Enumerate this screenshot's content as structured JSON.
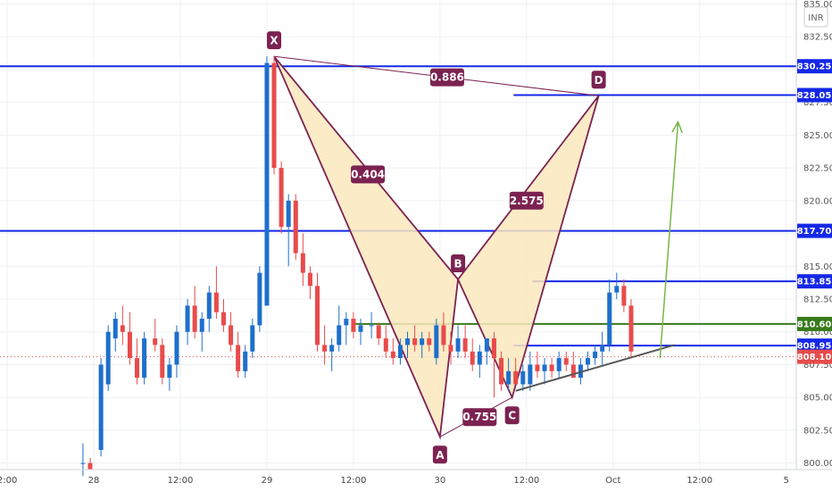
{
  "chart_data": {
    "type": "candlestick",
    "currency": "INR",
    "y_ticks": [
      "800.00",
      "802.50",
      "805.00",
      "807.50",
      "810.00",
      "812.50",
      "815.00",
      "817.50",
      "820.00",
      "822.50",
      "825.00",
      "827.50",
      "830.00",
      "832.50",
      "835.00"
    ],
    "ylim": [
      799.5,
      835.3
    ],
    "x_ticks": [
      {
        "t": 0,
        "label": "2:00"
      },
      {
        "t": 12,
        "label": "28"
      },
      {
        "t": 24,
        "label": "12:00"
      },
      {
        "t": 36,
        "label": "29"
      },
      {
        "t": 48,
        "label": "12:00"
      },
      {
        "t": 60,
        "label": "30"
      },
      {
        "t": 72,
        "label": "12:00"
      },
      {
        "t": 84,
        "label": "Oct"
      },
      {
        "t": 96,
        "label": "12:00"
      },
      {
        "t": 108,
        "label": "5"
      }
    ],
    "xlim": [
      -1,
      109.4
    ],
    "candles": [
      [
        10.5,
        800.0,
        801.5,
        799.0,
        800.0
      ],
      [
        11.5,
        800.0,
        800.4,
        799.5,
        799.5
      ],
      [
        13.0,
        801.0,
        808.0,
        800.5,
        807.5
      ],
      [
        14.0,
        806.0,
        810.5,
        805.5,
        810.0
      ],
      [
        15.0,
        809.5,
        811.5,
        808.5,
        811.0
      ],
      [
        16.0,
        810.5,
        812.0,
        809.0,
        810.0
      ],
      [
        17.0,
        810.0,
        811.5,
        807.5,
        808.0
      ],
      [
        18.0,
        808.0,
        809.5,
        806.0,
        806.5
      ],
      [
        19.0,
        806.5,
        810.0,
        806.0,
        809.5
      ],
      [
        20.5,
        809.5,
        811.0,
        808.5,
        809.0
      ],
      [
        21.5,
        809.0,
        809.5,
        806.0,
        806.5
      ],
      [
        22.5,
        806.5,
        808.0,
        805.5,
        807.5
      ],
      [
        23.5,
        807.5,
        810.5,
        806.5,
        810.0
      ],
      [
        25.0,
        810.0,
        812.5,
        809.0,
        812.0
      ],
      [
        26.0,
        812.0,
        813.5,
        809.5,
        810.0
      ],
      [
        27.0,
        810.0,
        811.5,
        808.5,
        811.0
      ],
      [
        28.0,
        811.0,
        813.5,
        810.0,
        813.0
      ],
      [
        29.0,
        813.0,
        815.0,
        811.0,
        811.5
      ],
      [
        30.0,
        811.5,
        812.5,
        810.0,
        810.5
      ],
      [
        31.0,
        810.5,
        811.5,
        808.5,
        809.0
      ],
      [
        32.0,
        809.0,
        810.0,
        806.5,
        807.0
      ],
      [
        33.0,
        807.0,
        809.0,
        806.5,
        808.5
      ],
      [
        34.0,
        808.5,
        811.0,
        808.0,
        810.5
      ],
      [
        35.0,
        810.5,
        815.0,
        810.0,
        814.5
      ],
      [
        36.0,
        812.0,
        831.0,
        812.0,
        830.5
      ],
      [
        37.0,
        830.5,
        831.0,
        822.0,
        822.5
      ],
      [
        38.0,
        822.5,
        823.0,
        817.5,
        818.0
      ],
      [
        39.0,
        818.0,
        820.5,
        815.0,
        820.0
      ],
      [
        40.0,
        820.0,
        820.5,
        815.5,
        816.0
      ],
      [
        41.0,
        816.0,
        817.5,
        813.5,
        814.5
      ],
      [
        42.0,
        814.5,
        815.0,
        812.5,
        813.5
      ],
      [
        43.0,
        813.5,
        814.5,
        808.5,
        809.0
      ],
      [
        44.0,
        809.0,
        810.5,
        807.5,
        808.5
      ],
      [
        45.0,
        808.5,
        809.5,
        807.0,
        809.0
      ],
      [
        46.0,
        809.0,
        812.0,
        808.5,
        810.5
      ],
      [
        47.0,
        810.5,
        811.5,
        809.0,
        811.0
      ],
      [
        48.0,
        811.0,
        811.5,
        809.5,
        810.0
      ],
      [
        49.0,
        810.0,
        811.0,
        809.0,
        810.5
      ],
      [
        50.5,
        810.5,
        811.5,
        809.5,
        810.5
      ],
      [
        51.5,
        810.5,
        810.7,
        809.0,
        809.5
      ],
      [
        52.5,
        809.5,
        810.5,
        808.0,
        808.5
      ],
      [
        53.5,
        808.5,
        809.5,
        807.5,
        808.0
      ],
      [
        54.5,
        808.0,
        809.5,
        807.5,
        809.0
      ],
      [
        55.5,
        809.0,
        810.0,
        808.0,
        809.5
      ],
      [
        56.5,
        809.5,
        810.5,
        808.5,
        809.0
      ],
      [
        57.5,
        809.0,
        810.0,
        808.0,
        809.5
      ],
      [
        58.5,
        809.5,
        810.0,
        808.5,
        809.0
      ],
      [
        59.5,
        808.0,
        811.0,
        807.5,
        810.5
      ],
      [
        60.5,
        810.5,
        811.5,
        808.5,
        809.0
      ],
      [
        61.5,
        809.0,
        810.0,
        807.5,
        808.5
      ],
      [
        62.5,
        808.5,
        810.5,
        808.0,
        809.5
      ],
      [
        63.5,
        809.5,
        810.5,
        808.0,
        808.5
      ],
      [
        64.5,
        808.5,
        809.5,
        807.0,
        807.5
      ],
      [
        65.5,
        807.5,
        809.0,
        806.5,
        808.5
      ],
      [
        66.5,
        808.5,
        809.5,
        807.5,
        809.5
      ],
      [
        67.5,
        809.5,
        810.0,
        805.0,
        808.0
      ],
      [
        68.5,
        808.0,
        808.5,
        805.5,
        806.0
      ],
      [
        69.5,
        806.0,
        808.0,
        805.5,
        807.0
      ],
      [
        70.5,
        807.0,
        808.0,
        806.0,
        806.0
      ],
      [
        71.5,
        806.0,
        807.5,
        805.5,
        807.0
      ],
      [
        72.5,
        806.0,
        808.5,
        805.5,
        807.5
      ],
      [
        73.5,
        807.5,
        808.5,
        806.5,
        807.0
      ],
      [
        74.5,
        807.0,
        808.0,
        806.0,
        807.5
      ],
      [
        75.5,
        807.5,
        808.0,
        806.5,
        807.0
      ],
      [
        76.5,
        807.0,
        808.5,
        806.5,
        808.0
      ],
      [
        77.5,
        808.0,
        808.5,
        807.0,
        807.5
      ],
      [
        78.5,
        807.5,
        808.5,
        806.5,
        806.5
      ],
      [
        79.5,
        806.5,
        808.0,
        806.0,
        807.5
      ],
      [
        80.5,
        807.5,
        808.5,
        807.0,
        808.0
      ],
      [
        81.5,
        808.0,
        809.0,
        807.5,
        808.5
      ],
      [
        82.5,
        808.5,
        810.0,
        807.5,
        809.0
      ],
      [
        83.5,
        809.0,
        814.0,
        808.5,
        813.0
      ],
      [
        84.5,
        813.0,
        814.5,
        812.5,
        813.5
      ],
      [
        85.5,
        813.5,
        814.0,
        811.5,
        812.0
      ],
      [
        86.5,
        812.0,
        812.5,
        808.0,
        808.5
      ]
    ],
    "horizontal_lines": [
      {
        "price": 830.25,
        "label": "830.25",
        "x_start": -1,
        "color": "#1428e6"
      },
      {
        "price": 828.05,
        "label": "828.05",
        "x_start": 70.2,
        "color": "#1428e6"
      },
      {
        "price": 817.7,
        "label": "817.70",
        "x_start": -1,
        "color": "#1428e6"
      },
      {
        "price": 813.85,
        "label": "813.85",
        "x_start": 72.8,
        "color": "#1428e6"
      },
      {
        "price": 810.6,
        "label": "810.60",
        "x_start": 48,
        "color": "#387a1b"
      },
      {
        "price": 808.95,
        "label": "808.95",
        "x_start": 70.2,
        "color": "#1428e6"
      }
    ],
    "current_price": {
      "price": 808.1,
      "label": "808.10",
      "color": "#e84b4b"
    },
    "pattern": {
      "points": [
        {
          "name": "X",
          "t": 37.0,
          "p": 831.0
        },
        {
          "name": "A",
          "t": 60.0,
          "p": 802.0
        },
        {
          "name": "B",
          "t": 62.5,
          "p": 814.0
        },
        {
          "name": "C",
          "t": 70.0,
          "p": 805.0
        },
        {
          "name": "D",
          "t": 82.0,
          "p": 828.0
        }
      ],
      "ratios": [
        {
          "value": "0.886",
          "t": 61.0,
          "p": 829.4
        },
        {
          "value": "0.404",
          "t": 50.0,
          "p": 822.0
        },
        {
          "value": "2.575",
          "t": 72.0,
          "p": 820.0
        },
        {
          "value": "0.755",
          "t": 65.5,
          "p": 803.5
        }
      ]
    },
    "trendline": {
      "t1": 70.5,
      "p1": 805.5,
      "t2": 92.5,
      "p2": 809.0,
      "color": "#555555"
    },
    "forecast_arrow": {
      "t1": 90.5,
      "p1": 808.0,
      "t2": 93.0,
      "p2": 826.0,
      "color": "#7ab648"
    },
    "colors": {
      "up": "#1e6fcc",
      "down": "#e84b4b",
      "pattern_fill": "#fce8bd",
      "pattern_line": "#7b2251",
      "label_bg": "#7b2251"
    }
  }
}
